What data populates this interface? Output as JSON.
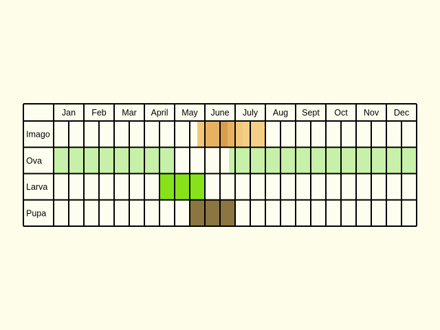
{
  "chart_data": {
    "type": "table",
    "title": "",
    "months": [
      "Jan",
      "Feb",
      "Mar",
      "April",
      "May",
      "June",
      "July",
      "Aug",
      "Sept",
      "Oct",
      "Nov",
      "Dec"
    ],
    "half_months_per_month": 2,
    "rows": [
      {
        "name": "Imago",
        "periods": [
          {
            "from": 9.5,
            "to": 10.0,
            "color": "#F2C77C"
          },
          {
            "from": 10.0,
            "to": 11.0,
            "color": "#E6B262"
          },
          {
            "from": 11.0,
            "to": 11.5,
            "color": "#D99D4C"
          },
          {
            "from": 11.5,
            "to": 12.0,
            "color": "#E6B262"
          },
          {
            "from": 12.0,
            "to": 12.5,
            "color": "#F2C77C"
          },
          {
            "from": 12.5,
            "to": 14.0,
            "color": "#F5CF86"
          }
        ]
      },
      {
        "name": "Ova",
        "periods": [
          {
            "from": 0,
            "to": 8.0,
            "color": "#C7F0A8"
          },
          {
            "from": 11.6,
            "to": 24.0,
            "color": "#C7F0A8"
          }
        ]
      },
      {
        "name": "Larva",
        "periods": [
          {
            "from": 7.0,
            "to": 10.0,
            "color": "#88E21A"
          }
        ]
      },
      {
        "name": "Pupa",
        "periods": [
          {
            "from": 9.0,
            "to": 12.0,
            "color": "#8B7540"
          }
        ]
      }
    ],
    "colors": {
      "background": "#FDFDEA",
      "grid": "#000000",
      "cell": "#FEFEF0"
    }
  }
}
